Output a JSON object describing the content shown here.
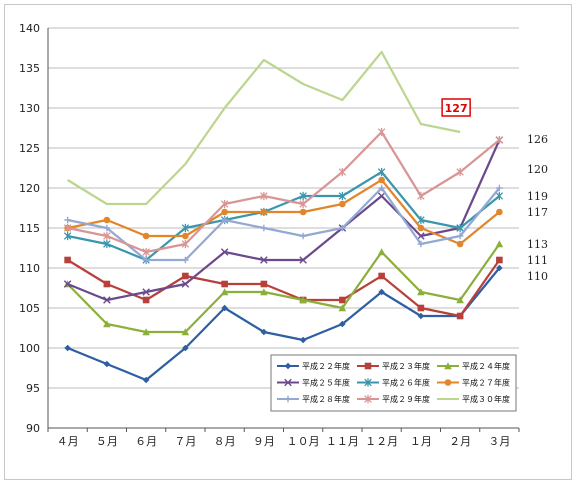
{
  "chart_data": {
    "type": "line",
    "categories": [
      "４月",
      "５月",
      "６月",
      "７月",
      "８月",
      "９月",
      "１０月",
      "１１月",
      "１２月",
      "１月",
      "２月",
      "３月"
    ],
    "ylim": [
      90,
      140
    ],
    "yticks": [
      90,
      95,
      100,
      105,
      110,
      115,
      120,
      125,
      130,
      135,
      140
    ],
    "grid": true,
    "legend_placement": "bottom-right",
    "series": [
      {
        "name": "平成２２年度",
        "color": "#2e5fa3",
        "marker": "diamond",
        "values": [
          100,
          98,
          96,
          100,
          105,
          102,
          101,
          103,
          107,
          104,
          104,
          110
        ]
      },
      {
        "name": "平成２３年度",
        "color": "#b8403a",
        "marker": "square",
        "values": [
          111,
          108,
          106,
          109,
          108,
          108,
          106,
          106,
          109,
          105,
          104,
          111
        ]
      },
      {
        "name": "平成２４年度",
        "color": "#8cae3b",
        "marker": "triangle",
        "values": [
          108,
          103,
          102,
          102,
          107,
          107,
          106,
          105,
          112,
          107,
          106,
          113
        ]
      },
      {
        "name": "平成２５年度",
        "color": "#6a4a8c",
        "marker": "x",
        "values": [
          108,
          106,
          107,
          108,
          112,
          111,
          111,
          115,
          119,
          114,
          115,
          126
        ]
      },
      {
        "name": "平成２６年度",
        "color": "#3b96ad",
        "marker": "star",
        "values": [
          114,
          113,
          111,
          115,
          116,
          117,
          119,
          119,
          122,
          116,
          115,
          119
        ]
      },
      {
        "name": "平成２７年度",
        "color": "#e2862b",
        "marker": "circle",
        "values": [
          115,
          116,
          114,
          114,
          117,
          117,
          117,
          118,
          121,
          115,
          113,
          117
        ]
      },
      {
        "name": "平成２８年度",
        "color": "#93a9d3",
        "marker": "plus",
        "values": [
          116,
          115,
          111,
          111,
          116,
          115,
          114,
          115,
          120,
          113,
          114,
          120
        ]
      },
      {
        "name": "平成２９年度",
        "color": "#d99595",
        "marker": "star",
        "values": [
          115,
          114,
          112,
          113,
          118,
          119,
          118,
          122,
          127,
          119,
          122,
          126
        ]
      },
      {
        "name": "平成３０年度",
        "color": "#bcd58f",
        "marker": "none",
        "values": [
          121,
          118,
          118,
          123,
          130,
          136,
          133,
          131,
          137,
          128,
          127,
          null
        ]
      }
    ],
    "end_labels": [
      {
        "text": "126",
        "value": 126
      },
      {
        "text": "120",
        "value": 120
      },
      {
        "text": "119",
        "value": 119
      },
      {
        "text": "117",
        "value": 117
      },
      {
        "text": "113",
        "value": 113
      },
      {
        "text": "111",
        "value": 111
      },
      {
        "text": "110",
        "value": 110
      }
    ],
    "callout": {
      "text": "127",
      "category_index": 10,
      "value": 127,
      "color": "#e00000"
    }
  }
}
